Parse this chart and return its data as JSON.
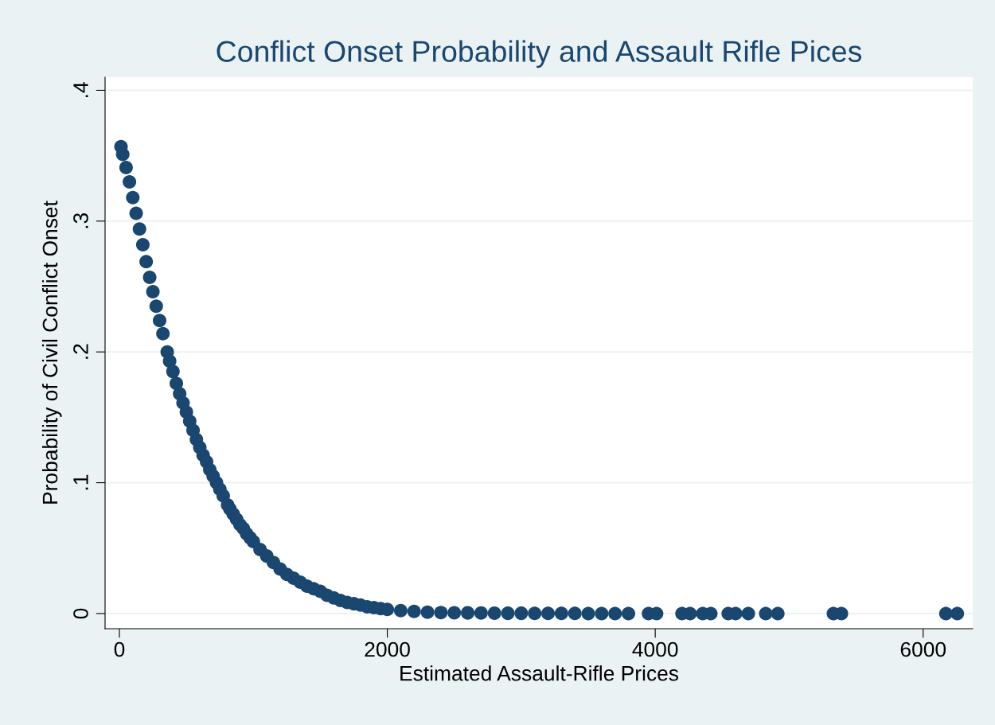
{
  "chart_data": {
    "type": "scatter",
    "title": "Conflict Onset Probability and Assault Rifle Pices",
    "xlabel": "Estimated Assault-Rifle Prices",
    "ylabel": "Probability of Civil Conflict Onset",
    "x": [
      12,
      25,
      50,
      75,
      100,
      125,
      150,
      175,
      200,
      226,
      250,
      275,
      300,
      325,
      357,
      375,
      400,
      425,
      450,
      475,
      500,
      525,
      550,
      575,
      600,
      625,
      651,
      675,
      700,
      725,
      750,
      775,
      808,
      825,
      850,
      875,
      900,
      925,
      950,
      975,
      1000,
      1050,
      1100,
      1150,
      1200,
      1250,
      1300,
      1350,
      1400,
      1450,
      1500,
      1550,
      1600,
      1650,
      1700,
      1750,
      1800,
      1850,
      1900,
      1950,
      2000,
      2100,
      2200,
      2300,
      2400,
      2500,
      2600,
      2700,
      2800,
      2900,
      3000,
      3100,
      3200,
      3300,
      3400,
      3500,
      3600,
      3700,
      3800,
      3950,
      4010,
      4200,
      4260,
      4355,
      4415,
      4545,
      4600,
      4695,
      4825,
      4915,
      5330,
      5390,
      6170,
      6255
    ],
    "series": [
      {
        "color": "#1a476f",
        "values": [
          0.357,
          0.351,
          0.341,
          0.33,
          0.318,
          0.306,
          0.294,
          0.282,
          0.269,
          0.257,
          0.246,
          0.235,
          0.224,
          0.214,
          0.2,
          0.193,
          0.185,
          0.176,
          0.168,
          0.161,
          0.154,
          0.147,
          0.14,
          0.133,
          0.127,
          0.121,
          0.116,
          0.11,
          0.105,
          0.1,
          0.095,
          0.09,
          0.083,
          0.08,
          0.076,
          0.072,
          0.068,
          0.065,
          0.061,
          0.058,
          0.055,
          0.049,
          0.044,
          0.039,
          0.034,
          0.03,
          0.027,
          0.024,
          0.021,
          0.019,
          0.017,
          0.014,
          0.012,
          0.01,
          0.0085,
          0.0075,
          0.0065,
          0.0052,
          0.0045,
          0.0038,
          0.0032,
          0.0022,
          0.0016,
          0.0011,
          0.0008,
          0.0006,
          0.0005,
          0.0004,
          0.0003,
          0.0002,
          0.0002,
          0.0001,
          0.0001,
          0.0001,
          0.0001,
          0,
          0,
          0,
          0,
          0,
          0,
          0,
          0,
          0,
          0,
          0,
          0,
          0,
          0,
          0,
          0,
          0,
          0,
          0
        ]
      }
    ],
    "xlim": [
      -107,
      6370
    ],
    "ylim": [
      -0.0116,
      0.41
    ],
    "xticks": [
      0,
      2000,
      4000,
      6000
    ],
    "yticks": [
      0,
      {
        "value": 0.1,
        "label": ".1"
      },
      {
        "value": 0.2,
        "label": ".2"
      },
      {
        "value": 0.3,
        "label": ".3"
      },
      {
        "value": 0.4,
        "label": ".4"
      }
    ],
    "grid": "y",
    "marker": "circle",
    "legend": false
  }
}
